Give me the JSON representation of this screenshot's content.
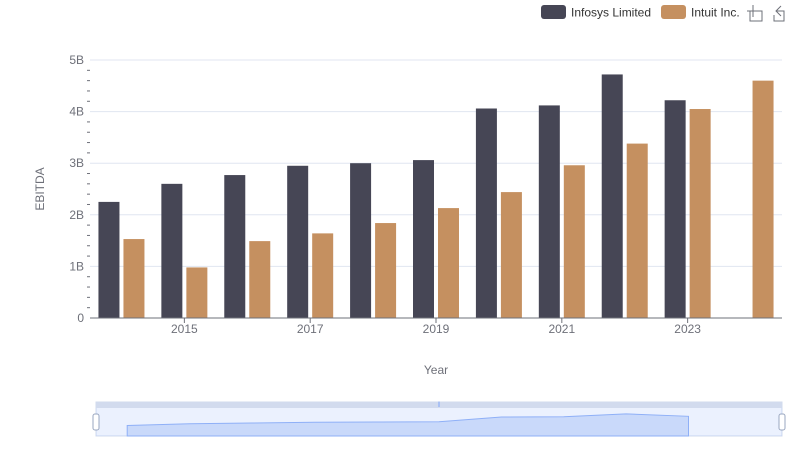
{
  "colors": {
    "infosys": "#464655",
    "intuit": "#c59060",
    "grid": "#e0e6f1",
    "axis": "#6e7079",
    "zoom_fill": "#d6e2fb",
    "zoom_line": "#8fb0f7"
  },
  "legend": {
    "items": [
      {
        "label": "Infosys Limited",
        "color": "#464655"
      },
      {
        "label": "Intuit Inc.",
        "color": "#c59060"
      }
    ]
  },
  "toolbox": {
    "icons": [
      "zoom-icon",
      "zoom-reset-icon"
    ]
  },
  "chart_data": {
    "type": "bar",
    "xlabel": "Year",
    "ylabel": "EBITDA",
    "x_tick_labels": [
      "2015",
      "2017",
      "2019",
      "2021",
      "2023"
    ],
    "y_tick_labels": [
      "0",
      "1B",
      "2B",
      "3B",
      "4B",
      "5B"
    ],
    "ylim": [
      0,
      5000000000
    ],
    "grid": true,
    "legend_position": "top-right",
    "categories": [
      "2014",
      "2015",
      "2016",
      "2017",
      "2018",
      "2019",
      "2020",
      "2021",
      "2022",
      "2023",
      "2024"
    ],
    "series": [
      {
        "name": "Infosys Limited",
        "values": [
          2250000000,
          2600000000,
          2770000000,
          2950000000,
          3000000000,
          3060000000,
          4060000000,
          4120000000,
          4720000000,
          4220000000,
          null
        ]
      },
      {
        "name": "Intuit Inc.",
        "values": [
          1530000000,
          980000000,
          1490000000,
          1640000000,
          1840000000,
          2130000000,
          2440000000,
          2960000000,
          3380000000,
          4050000000,
          4600000000
        ]
      }
    ]
  }
}
